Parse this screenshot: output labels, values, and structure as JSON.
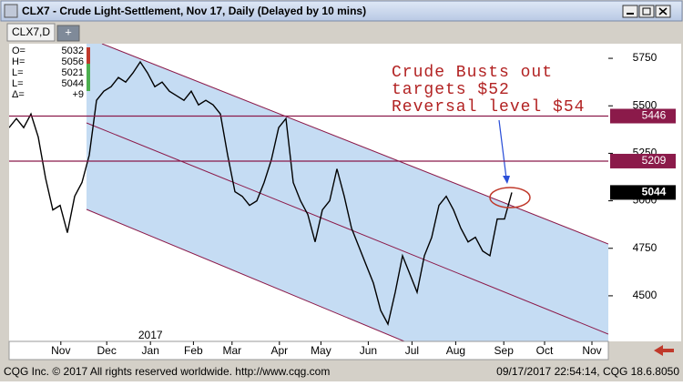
{
  "window_title": "CLX7 - Crude Light-Settlement, Nov 17, Daily (Delayed by 10 mins)",
  "tab": "CLX7,D",
  "tab_add": "+",
  "quote": [
    {
      "label": "O=",
      "value": 5032
    },
    {
      "label": "H=",
      "value": 5056
    },
    {
      "label": "L=",
      "value": 5021
    },
    {
      "label": "L=",
      "value": 5044
    },
    {
      "label": "Δ=",
      "value": "+9"
    }
  ],
  "chart_data": {
    "type": "line",
    "color": "#000000",
    "year_label": "2017",
    "annotation": [
      "Crude Busts out",
      "targets $52",
      "Reversal level $54"
    ],
    "values": [
      5385,
      5433,
      5385,
      5457,
      5336,
      5120,
      4952,
      4976,
      4832,
      5024,
      5096,
      5240,
      5529,
      5577,
      5601,
      5649,
      5625,
      5673,
      5731,
      5673,
      5601,
      5625,
      5577,
      5553,
      5529,
      5577,
      5505,
      5529,
      5505,
      5457,
      5240,
      5048,
      5024,
      4976,
      5000,
      5096,
      5216,
      5385,
      5433,
      5096,
      5000,
      4928,
      4784,
      4952,
      5000,
      5168,
      5024,
      4856,
      4760,
      4663,
      4567,
      4423,
      4351,
      4519,
      4711,
      4615,
      4519,
      4711,
      4807,
      4976,
      5024,
      4952,
      4856,
      4784,
      4808,
      4736,
      4711,
      4904,
      4904,
      5044
    ],
    "xlim": [
      0,
      82.25
    ],
    "xticks": [
      {
        "value": 7.1,
        "label": "Nov"
      },
      {
        "value": 13.4,
        "label": "Dec"
      },
      {
        "value": 19.4,
        "label": "Jan"
      },
      {
        "value": 25.3,
        "label": "Feb"
      },
      {
        "value": 30.6,
        "label": "Mar"
      },
      {
        "value": 37.1,
        "label": "Apr"
      },
      {
        "value": 42.8,
        "label": "May"
      },
      {
        "value": 49.3,
        "label": "Jun"
      },
      {
        "value": 55.3,
        "label": "Jul"
      },
      {
        "value": 61.3,
        "label": "Aug"
      },
      {
        "value": 67.9,
        "label": "Sep"
      },
      {
        "value": 73.5,
        "label": "Oct"
      },
      {
        "value": 80,
        "label": "Nov"
      }
    ],
    "ylim": [
      4260,
      5827
    ],
    "yticks": [
      4500,
      4750,
      5000,
      5250,
      5500,
      5750
    ],
    "hlines": [
      5446,
      5209
    ],
    "hline_color": "#8b1a4a",
    "last_value": 5044
  },
  "footer_left": "CQG Inc. © 2017 All rights reserved worldwide. http://www.cqg.com",
  "footer_right": "09/17/2017 22:54:14, CQG 18.6.8050"
}
